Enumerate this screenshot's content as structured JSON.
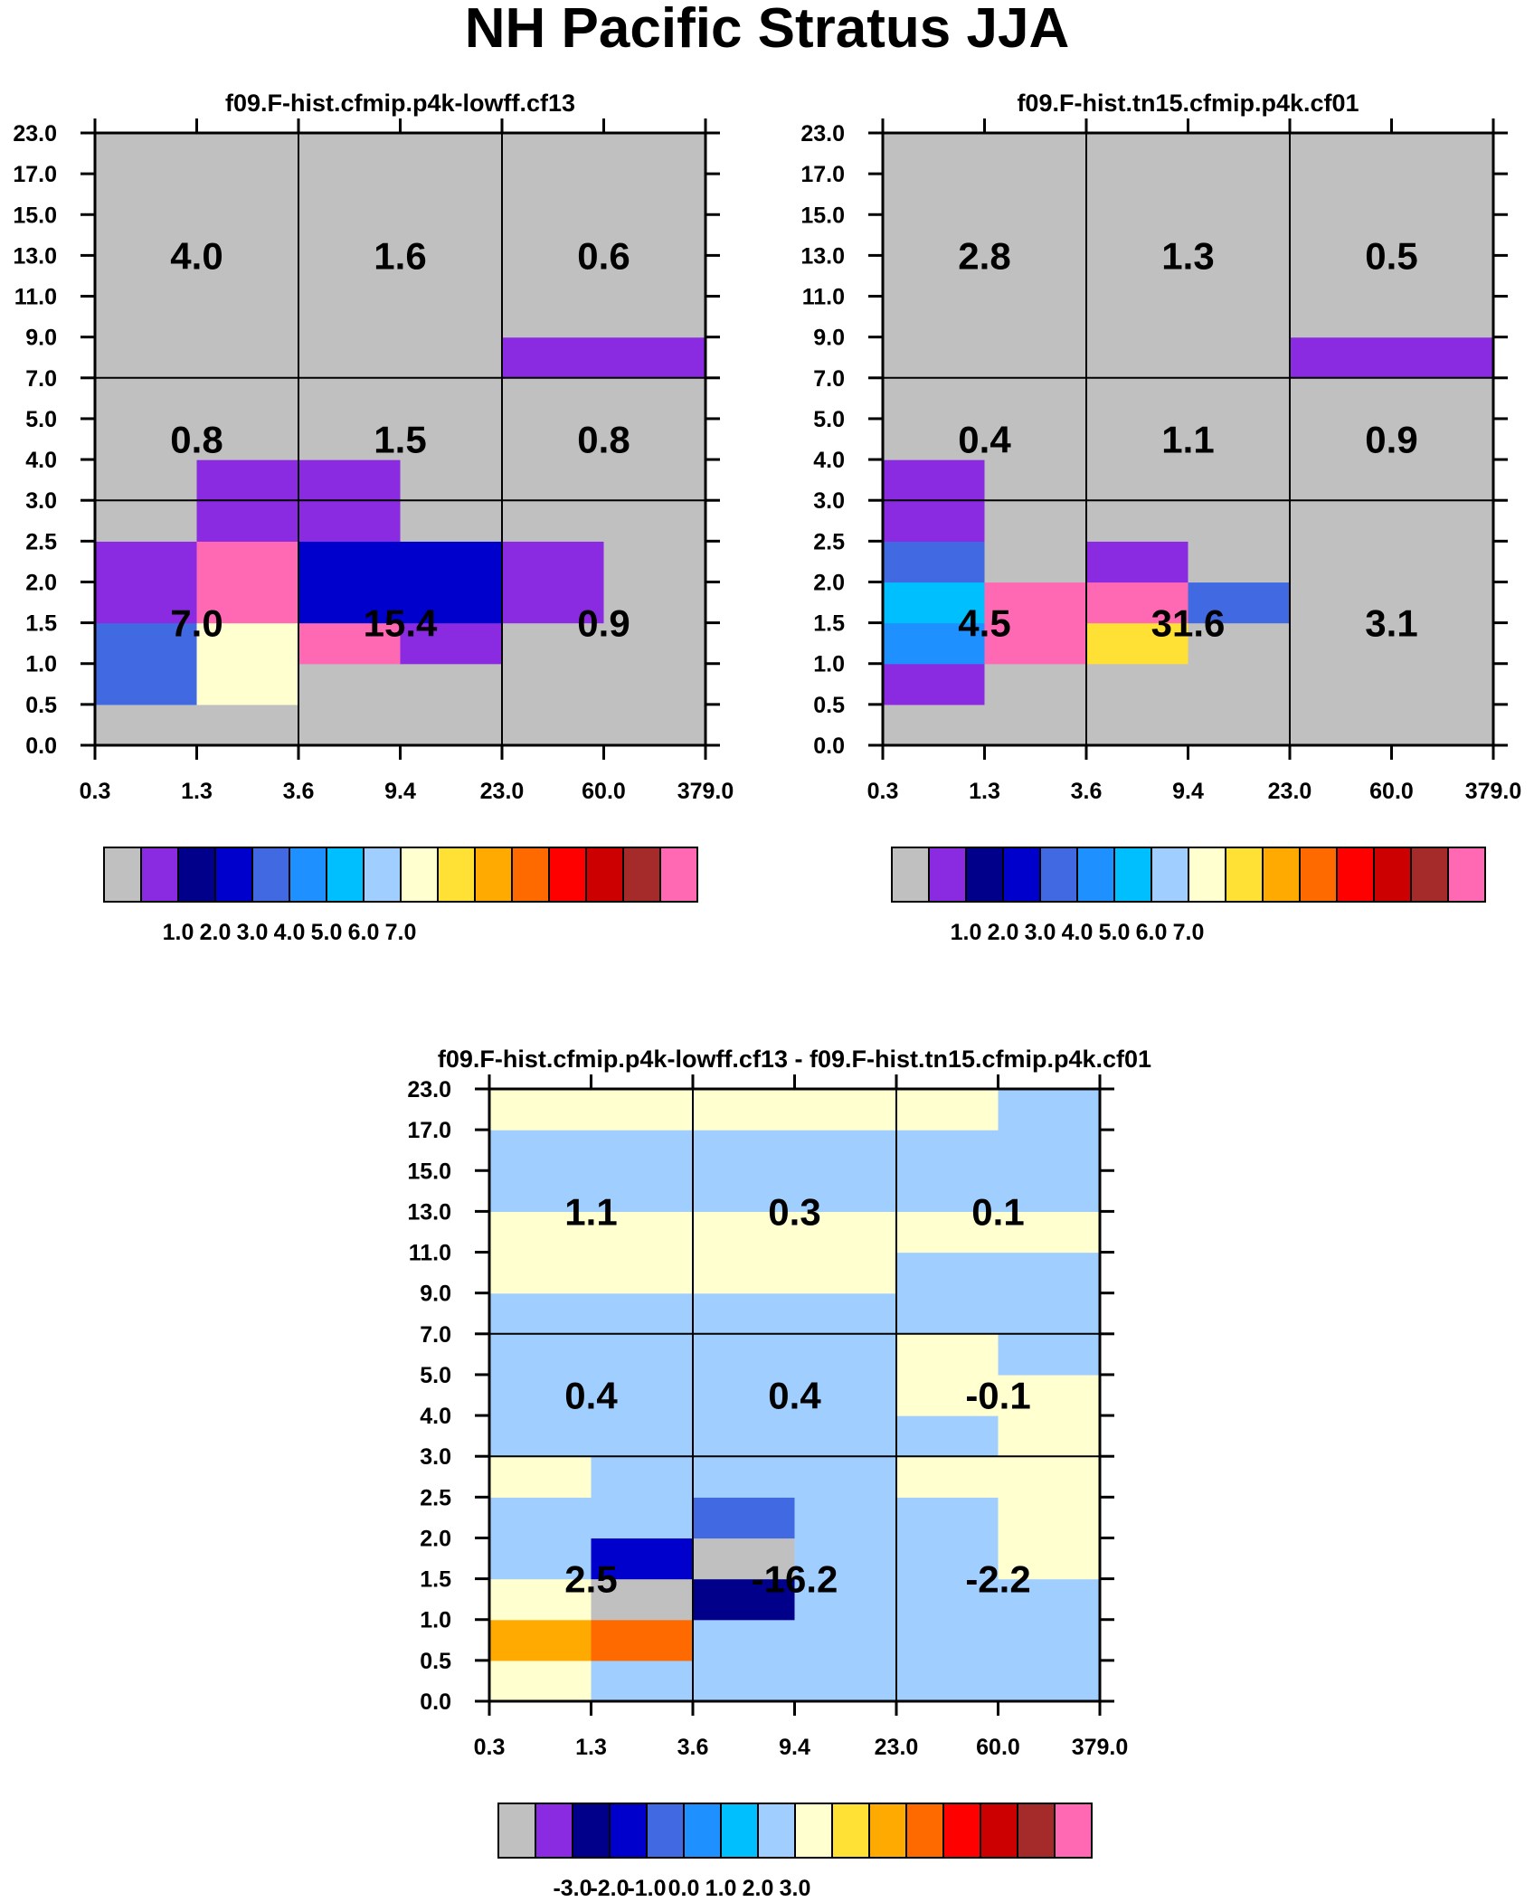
{
  "title": "NH Pacific Stratus JJA",
  "colors": {
    "palette": [
      "#c0c0c0",
      "#8a2be2",
      "#00008b",
      "#0000cd",
      "#4169e1",
      "#1e90ff",
      "#00bfff",
      "#a0cfff",
      "#ffffd0",
      "#ffe135",
      "#ffaa00",
      "#ff6a00",
      "#ff0000",
      "#cc0000",
      "#a52a2a",
      "#ff69b4"
    ],
    "grid_line": "#000000",
    "text": "#000000"
  },
  "chart_data": [
    {
      "type": "heatmap",
      "title": "f09.F-hist.cfmip.p4k-lowff.cf13",
      "x_tick_labels": [
        "0.3",
        "1.3",
        "3.6",
        "9.4",
        "23.0",
        "60.0",
        "379.0"
      ],
      "y_tick_labels": [
        "0.0",
        "0.5",
        "1.0",
        "1.5",
        "2.0",
        "2.5",
        "3.0",
        "4.0",
        "5.0",
        "7.0",
        "9.0",
        "11.0",
        "13.0",
        "15.0",
        "17.0",
        "23.0"
      ],
      "dividers_x": [
        2,
        4
      ],
      "dividers_y": [
        6,
        9
      ],
      "cells_color_index": [
        [
          0,
          4,
          4,
          1,
          1,
          0,
          0,
          0,
          0,
          0,
          0,
          0,
          0,
          0,
          0
        ],
        [
          0,
          8,
          8,
          15,
          15,
          1,
          1,
          0,
          0,
          0,
          0,
          0,
          0,
          0,
          0
        ],
        [
          0,
          0,
          15,
          3,
          3,
          1,
          1,
          0,
          0,
          0,
          0,
          0,
          0,
          0,
          0
        ],
        [
          0,
          0,
          1,
          3,
          3,
          0,
          0,
          0,
          0,
          0,
          0,
          0,
          0,
          0,
          0
        ],
        [
          0,
          0,
          0,
          1,
          1,
          0,
          0,
          0,
          0,
          1,
          0,
          0,
          0,
          0,
          0
        ],
        [
          0,
          0,
          0,
          0,
          0,
          0,
          0,
          0,
          0,
          1,
          0,
          0,
          0,
          0,
          0
        ]
      ],
      "block_values": [
        {
          "x_block": 0,
          "y_block": 0,
          "value": "7.0"
        },
        {
          "x_block": 1,
          "y_block": 0,
          "value": "15.4"
        },
        {
          "x_block": 2,
          "y_block": 0,
          "value": "0.9"
        },
        {
          "x_block": 0,
          "y_block": 1,
          "value": "0.8"
        },
        {
          "x_block": 1,
          "y_block": 1,
          "value": "1.5"
        },
        {
          "x_block": 2,
          "y_block": 1,
          "value": "0.8"
        },
        {
          "x_block": 0,
          "y_block": 2,
          "value": "4.0"
        },
        {
          "x_block": 1,
          "y_block": 2,
          "value": "1.6"
        },
        {
          "x_block": 2,
          "y_block": 2,
          "value": "0.6"
        }
      ],
      "colorbar": {
        "labels": [
          "1.0",
          "2.0",
          "3.0",
          "4.0",
          "5.0",
          "6.0",
          "7.0"
        ],
        "label_boundary_start": 2
      }
    },
    {
      "type": "heatmap",
      "title": "f09.F-hist.tn15.cfmip.p4k.cf01",
      "x_tick_labels": [
        "0.3",
        "1.3",
        "3.6",
        "9.4",
        "23.0",
        "60.0",
        "379.0"
      ],
      "y_tick_labels": [
        "0.0",
        "0.5",
        "1.0",
        "1.5",
        "2.0",
        "2.5",
        "3.0",
        "4.0",
        "5.0",
        "7.0",
        "9.0",
        "11.0",
        "13.0",
        "15.0",
        "17.0",
        "23.0"
      ],
      "dividers_x": [
        2,
        4
      ],
      "dividers_y": [
        6,
        9
      ],
      "cells_color_index": [
        [
          0,
          1,
          5,
          6,
          4,
          1,
          1,
          0,
          0,
          0,
          0,
          0,
          0,
          0,
          0
        ],
        [
          0,
          0,
          15,
          15,
          0,
          0,
          0,
          0,
          0,
          0,
          0,
          0,
          0,
          0,
          0
        ],
        [
          0,
          0,
          9,
          15,
          1,
          0,
          0,
          0,
          0,
          0,
          0,
          0,
          0,
          0,
          0
        ],
        [
          0,
          0,
          0,
          4,
          0,
          0,
          0,
          0,
          0,
          0,
          0,
          0,
          0,
          0,
          0
        ],
        [
          0,
          0,
          0,
          0,
          0,
          0,
          0,
          0,
          0,
          1,
          0,
          0,
          0,
          0,
          0
        ],
        [
          0,
          0,
          0,
          0,
          0,
          0,
          0,
          0,
          0,
          1,
          0,
          0,
          0,
          0,
          0
        ]
      ],
      "block_values": [
        {
          "x_block": 0,
          "y_block": 0,
          "value": "4.5"
        },
        {
          "x_block": 1,
          "y_block": 0,
          "value": "31.6"
        },
        {
          "x_block": 2,
          "y_block": 0,
          "value": "3.1"
        },
        {
          "x_block": 0,
          "y_block": 1,
          "value": "0.4"
        },
        {
          "x_block": 1,
          "y_block": 1,
          "value": "1.1"
        },
        {
          "x_block": 2,
          "y_block": 1,
          "value": "0.9"
        },
        {
          "x_block": 0,
          "y_block": 2,
          "value": "2.8"
        },
        {
          "x_block": 1,
          "y_block": 2,
          "value": "1.3"
        },
        {
          "x_block": 2,
          "y_block": 2,
          "value": "0.5"
        }
      ],
      "colorbar": {
        "labels": [
          "1.0",
          "2.0",
          "3.0",
          "4.0",
          "5.0",
          "6.0",
          "7.0"
        ],
        "label_boundary_start": 2
      }
    },
    {
      "type": "heatmap",
      "title": "f09.F-hist.cfmip.p4k-lowff.cf13 - f09.F-hist.tn15.cfmip.p4k.cf01",
      "x_tick_labels": [
        "0.3",
        "1.3",
        "3.6",
        "9.4",
        "23.0",
        "60.0",
        "379.0"
      ],
      "y_tick_labels": [
        "0.0",
        "0.5",
        "1.0",
        "1.5",
        "2.0",
        "2.5",
        "3.0",
        "4.0",
        "5.0",
        "7.0",
        "9.0",
        "11.0",
        "13.0",
        "15.0",
        "17.0",
        "23.0"
      ],
      "dividers_x": [
        2,
        4
      ],
      "dividers_y": [
        6,
        9
      ],
      "cells_color_index": [
        [
          8,
          10,
          8,
          7,
          7,
          8,
          7,
          7,
          7,
          7,
          8,
          8,
          7,
          7,
          8
        ],
        [
          7,
          11,
          0,
          3,
          7,
          7,
          7,
          7,
          7,
          7,
          8,
          8,
          7,
          7,
          8
        ],
        [
          7,
          7,
          2,
          0,
          4,
          7,
          7,
          7,
          7,
          7,
          8,
          8,
          7,
          7,
          8
        ],
        [
          7,
          7,
          7,
          7,
          7,
          7,
          7,
          7,
          7,
          7,
          8,
          8,
          7,
          7,
          8
        ],
        [
          7,
          7,
          7,
          7,
          7,
          8,
          7,
          8,
          8,
          7,
          7,
          8,
          7,
          7,
          8
        ],
        [
          7,
          7,
          7,
          8,
          8,
          8,
          8,
          8,
          7,
          7,
          7,
          8,
          7,
          7,
          7
        ]
      ],
      "block_values": [
        {
          "x_block": 0,
          "y_block": 0,
          "value": "2.5"
        },
        {
          "x_block": 1,
          "y_block": 0,
          "value": "-16.2"
        },
        {
          "x_block": 2,
          "y_block": 0,
          "value": "-2.2"
        },
        {
          "x_block": 0,
          "y_block": 1,
          "value": "0.4"
        },
        {
          "x_block": 1,
          "y_block": 1,
          "value": "0.4"
        },
        {
          "x_block": 2,
          "y_block": 1,
          "value": "-0.1"
        },
        {
          "x_block": 0,
          "y_block": 2,
          "value": "1.1"
        },
        {
          "x_block": 1,
          "y_block": 2,
          "value": "0.3"
        },
        {
          "x_block": 2,
          "y_block": 2,
          "value": "0.1"
        }
      ],
      "colorbar": {
        "labels": [
          "-3.0",
          "-2.0",
          "-1.0",
          "0.0",
          "1.0",
          "2.0",
          "3.0"
        ],
        "label_boundary_start": 2
      }
    }
  ]
}
